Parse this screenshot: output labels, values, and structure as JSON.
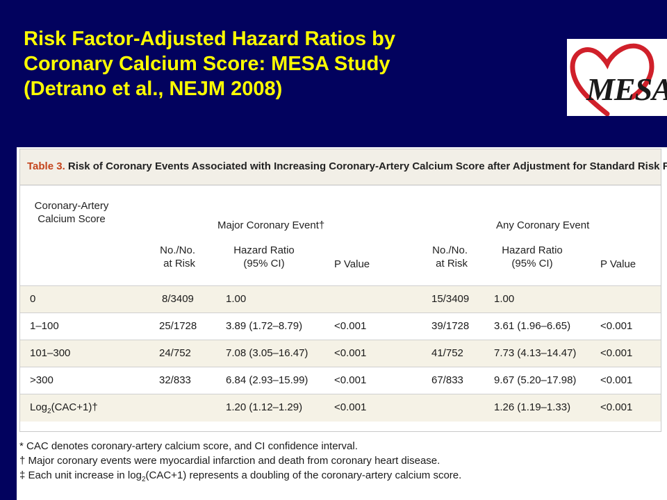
{
  "slide": {
    "title_lines": [
      "Risk Factor-Adjusted Hazard Ratios by",
      "Coronary Calcium Score: MESA Study",
      "(Detrano et al., NEJM 2008)"
    ],
    "title_color": "#ffff00",
    "background_color": "#02025e"
  },
  "logo": {
    "text": "MESA",
    "heart_color": "#d0202a"
  },
  "table": {
    "label": "Table 3.",
    "caption": "Risk of Coronary Events Associated with Increasing Coronary-Artery Calcium Score after Adjustment for Standard Risk Factors.*",
    "label_color": "#c4441c",
    "row_header": [
      "Coronary-Artery",
      "Calcium Score"
    ],
    "group_major": "Major Coronary Event†",
    "group_any": "Any Coronary Event",
    "col_no_at_risk": [
      "No./No.",
      "at Risk"
    ],
    "col_hazard_ratio": [
      "Hazard Ratio",
      "(95% CI)"
    ],
    "col_p_value": "P Value",
    "rows": [
      {
        "score": "0",
        "major_n": "8/3409",
        "major_hr": "1.00",
        "major_p": "",
        "any_n": "15/3409",
        "any_hr": "1.00",
        "any_p": ""
      },
      {
        "score": "1–100",
        "major_n": "25/1728",
        "major_hr": "3.89 (1.72–8.79)",
        "major_p": "<0.001",
        "any_n": "39/1728",
        "any_hr": "3.61 (1.96–6.65)",
        "any_p": "<0.001"
      },
      {
        "score": "101–300",
        "major_n": "24/752",
        "major_hr": "7.08 (3.05–16.47)",
        "major_p": "<0.001",
        "any_n": "41/752",
        "any_hr": "7.73 (4.13–14.47)",
        "any_p": "<0.001"
      },
      {
        "score": ">300",
        "major_n": "32/833",
        "major_hr": "6.84 (2.93–15.99)",
        "major_p": "<0.001",
        "any_n": "67/833",
        "any_hr": "9.67 (5.20–17.98)",
        "any_p": "<0.001"
      },
      {
        "score_prefix": "Log",
        "score_sub": "2",
        "score_suffix": "(CAC+1)†",
        "major_n": "",
        "major_hr": "1.20 (1.12–1.29)",
        "major_p": "<0.001",
        "any_n": "",
        "any_hr": "1.26 (1.19–1.33)",
        "any_p": "<0.001"
      }
    ]
  },
  "footnotes": [
    {
      "text": "* CAC denotes coronary-artery calcium score, and CI confidence interval."
    },
    {
      "text": "† Major coronary events were myocardial infarction and death from coronary heart disease."
    },
    {
      "prefix": "‡ Each unit increase in log",
      "sub": "2",
      "suffix": "(CAC+1) represents a doubling of the coronary-artery calcium score."
    }
  ]
}
